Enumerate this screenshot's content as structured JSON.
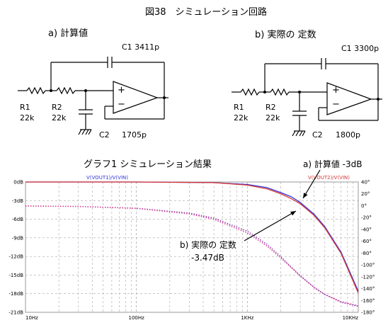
{
  "figure_title": "図38　シミュレーション回路",
  "circuits": [
    {
      "label": "a)  計算値",
      "r1_name": "R1",
      "r1_value": "22k",
      "r2_name": "R2",
      "r2_value": "22k",
      "c1_label": "C1  3411p",
      "c2_name": "C2",
      "c2_value": "1705p",
      "plus": "+",
      "minus": "−"
    },
    {
      "label": "b)  実際の 定数",
      "r1_name": "R1",
      "r1_value": "22k",
      "r2_name": "R2",
      "r2_value": "22k",
      "c1_label": "C1  3300p",
      "c2_name": "C2",
      "c2_value": "1800p",
      "plus": "+",
      "minus": "−"
    }
  ],
  "graph_title": "グラフ1  シミュレーション結果",
  "annotations": {
    "a": "a) 計算値  -3dB",
    "b_line1": "b) 実際の 定数",
    "b_line2": "-3.47dB"
  },
  "chart_data": {
    "type": "line",
    "x_scale": "log",
    "xlim": [
      10,
      10000
    ],
    "x_ticks": [
      "10Hz",
      "100Hz",
      "1KHz",
      "10KHz"
    ],
    "left_axis": {
      "ylim": [
        -21,
        0
      ],
      "ticks": [
        "0dB",
        "-3dB",
        "-6dB",
        "-9dB",
        "-12dB",
        "-15dB",
        "-18dB",
        "-21dB"
      ]
    },
    "right_axis": {
      "ylim": [
        -180,
        40
      ],
      "ticks": [
        "40°",
        "20°",
        "0°",
        "-20°",
        "-40°",
        "-60°",
        "-80°",
        "-100°",
        "-120°",
        "-140°",
        "-160°",
        "-180°"
      ]
    },
    "grid": true,
    "legend": [
      "V(VOUT1)/V(VIN)",
      "V(VOUT2)/V(VIN)"
    ],
    "colors": {
      "series_a_mag": "#3535d8",
      "series_b_mag": "#d83535",
      "series_a_phase": "#8a3ab8",
      "series_b_phase": "#d83a8c",
      "plot_border": "#9a9a9a",
      "grid": "#a8a8a8"
    },
    "series": [
      {
        "name": "V(VOUT1)/V(VIN)",
        "axis": "left",
        "x": [
          10,
          100,
          500,
          1000,
          1500,
          2000,
          2500,
          3000,
          4000,
          5000,
          7000,
          10000
        ],
        "y": [
          0,
          0,
          -0.1,
          -0.4,
          -0.9,
          -1.7,
          -2.4,
          -3.3,
          -5.2,
          -7.2,
          -11.3,
          -17.6
        ]
      },
      {
        "name": "V(VOUT2)/V(VIN)",
        "axis": "left",
        "x": [
          10,
          100,
          500,
          1000,
          1500,
          2000,
          2500,
          3000,
          4000,
          5000,
          7000,
          10000
        ],
        "y": [
          0,
          0,
          -0.1,
          -0.5,
          -1.1,
          -1.9,
          -2.7,
          -3.5,
          -5.4,
          -7.4,
          -11.5,
          -17.9
        ]
      },
      {
        "name": "V(VOUT1)/V(VIN) phase",
        "axis": "right",
        "x": [
          10,
          30,
          100,
          300,
          500,
          1000,
          1500,
          2000,
          2500,
          3000,
          4000,
          5000,
          7000,
          10000
        ],
        "y": [
          -0.4,
          -1.2,
          -4.2,
          -12.5,
          -21,
          -43,
          -65,
          -86,
          -104,
          -118,
          -138,
          -150,
          -163,
          -170
        ]
      },
      {
        "name": "V(VOUT2)/V(VIN) phase",
        "axis": "right",
        "x": [
          10,
          30,
          100,
          300,
          500,
          1000,
          1500,
          2000,
          2500,
          3000,
          4000,
          5000,
          7000,
          10000
        ],
        "y": [
          -0.5,
          -1.4,
          -4.6,
          -13.8,
          -23,
          -46,
          -68,
          -88,
          -105,
          -119,
          -138,
          -150,
          -162,
          -169
        ]
      }
    ]
  }
}
